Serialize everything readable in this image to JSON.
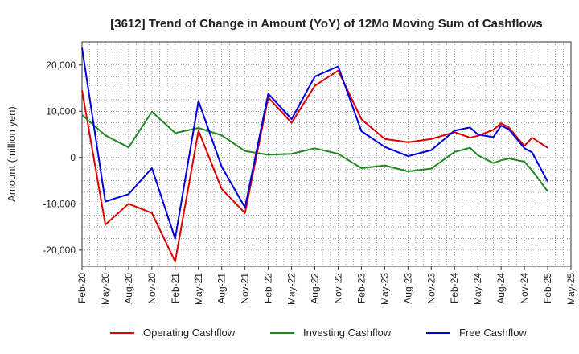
{
  "chart_data": {
    "type": "line",
    "title": "[3612]  Trend of Change in Amount (YoY) of 12Mo Moving Sum of Cashflows",
    "xlabel": "",
    "ylabel": "Amount (million yen)",
    "ylim": [
      -23500,
      25000
    ],
    "yticks": [
      -20000,
      -10000,
      0,
      10000,
      20000
    ],
    "ytick_labels": [
      "-20,000",
      "-10,000",
      "0",
      "10,000",
      "20,000"
    ],
    "x_tick_labels": [
      "Feb-20",
      "May-20",
      "Aug-20",
      "Nov-20",
      "Feb-21",
      "May-21",
      "Aug-21",
      "Nov-21",
      "Feb-22",
      "May-22",
      "Aug-22",
      "Nov-22",
      "Feb-23",
      "May-23",
      "Aug-23",
      "Nov-23",
      "Feb-24",
      "May-24",
      "Aug-24",
      "Nov-24",
      "Feb-25",
      "May-25"
    ],
    "x": [
      "Feb-20",
      "May-20",
      "Aug-20",
      "Nov-20",
      "Feb-21",
      "May-21",
      "Aug-21",
      "Nov-21",
      "Feb-22",
      "May-22",
      "Aug-22",
      "Nov-22",
      "Feb-23",
      "May-23",
      "Aug-23",
      "Nov-23",
      "Feb-24",
      "Apr-24",
      "May-24",
      "Jul-24",
      "Aug-24",
      "Sep-24",
      "Nov-24",
      "Dec-24",
      "Feb-25"
    ],
    "grid": true,
    "legend_position": "bottom",
    "series": [
      {
        "name": "Operating Cashflow",
        "color": "#dd0000",
        "values": [
          14500,
          -14500,
          -10000,
          -12000,
          -22500,
          5800,
          -6800,
          -12000,
          13000,
          7500,
          15500,
          18800,
          8300,
          4000,
          3300,
          4000,
          5500,
          4300,
          4700,
          6000,
          7400,
          6500,
          2500,
          4300,
          2100
        ]
      },
      {
        "name": "Investing Cashflow",
        "color": "#228822",
        "values": [
          9200,
          4800,
          2200,
          9900,
          5300,
          6400,
          4800,
          1400,
          600,
          800,
          2000,
          800,
          -2300,
          -1700,
          -3000,
          -2400,
          1200,
          2100,
          500,
          -1200,
          -600,
          -200,
          -900,
          -2800,
          -7300
        ]
      },
      {
        "name": "Free Cashflow",
        "color": "#0000dd",
        "values": [
          23700,
          -9500,
          -7900,
          -2300,
          -17500,
          12200,
          -2000,
          -10800,
          13800,
          8300,
          17500,
          19700,
          5700,
          2300,
          300,
          1600,
          5800,
          6500,
          5000,
          4400,
          6900,
          6100,
          2000,
          1100,
          -5200
        ]
      }
    ]
  }
}
